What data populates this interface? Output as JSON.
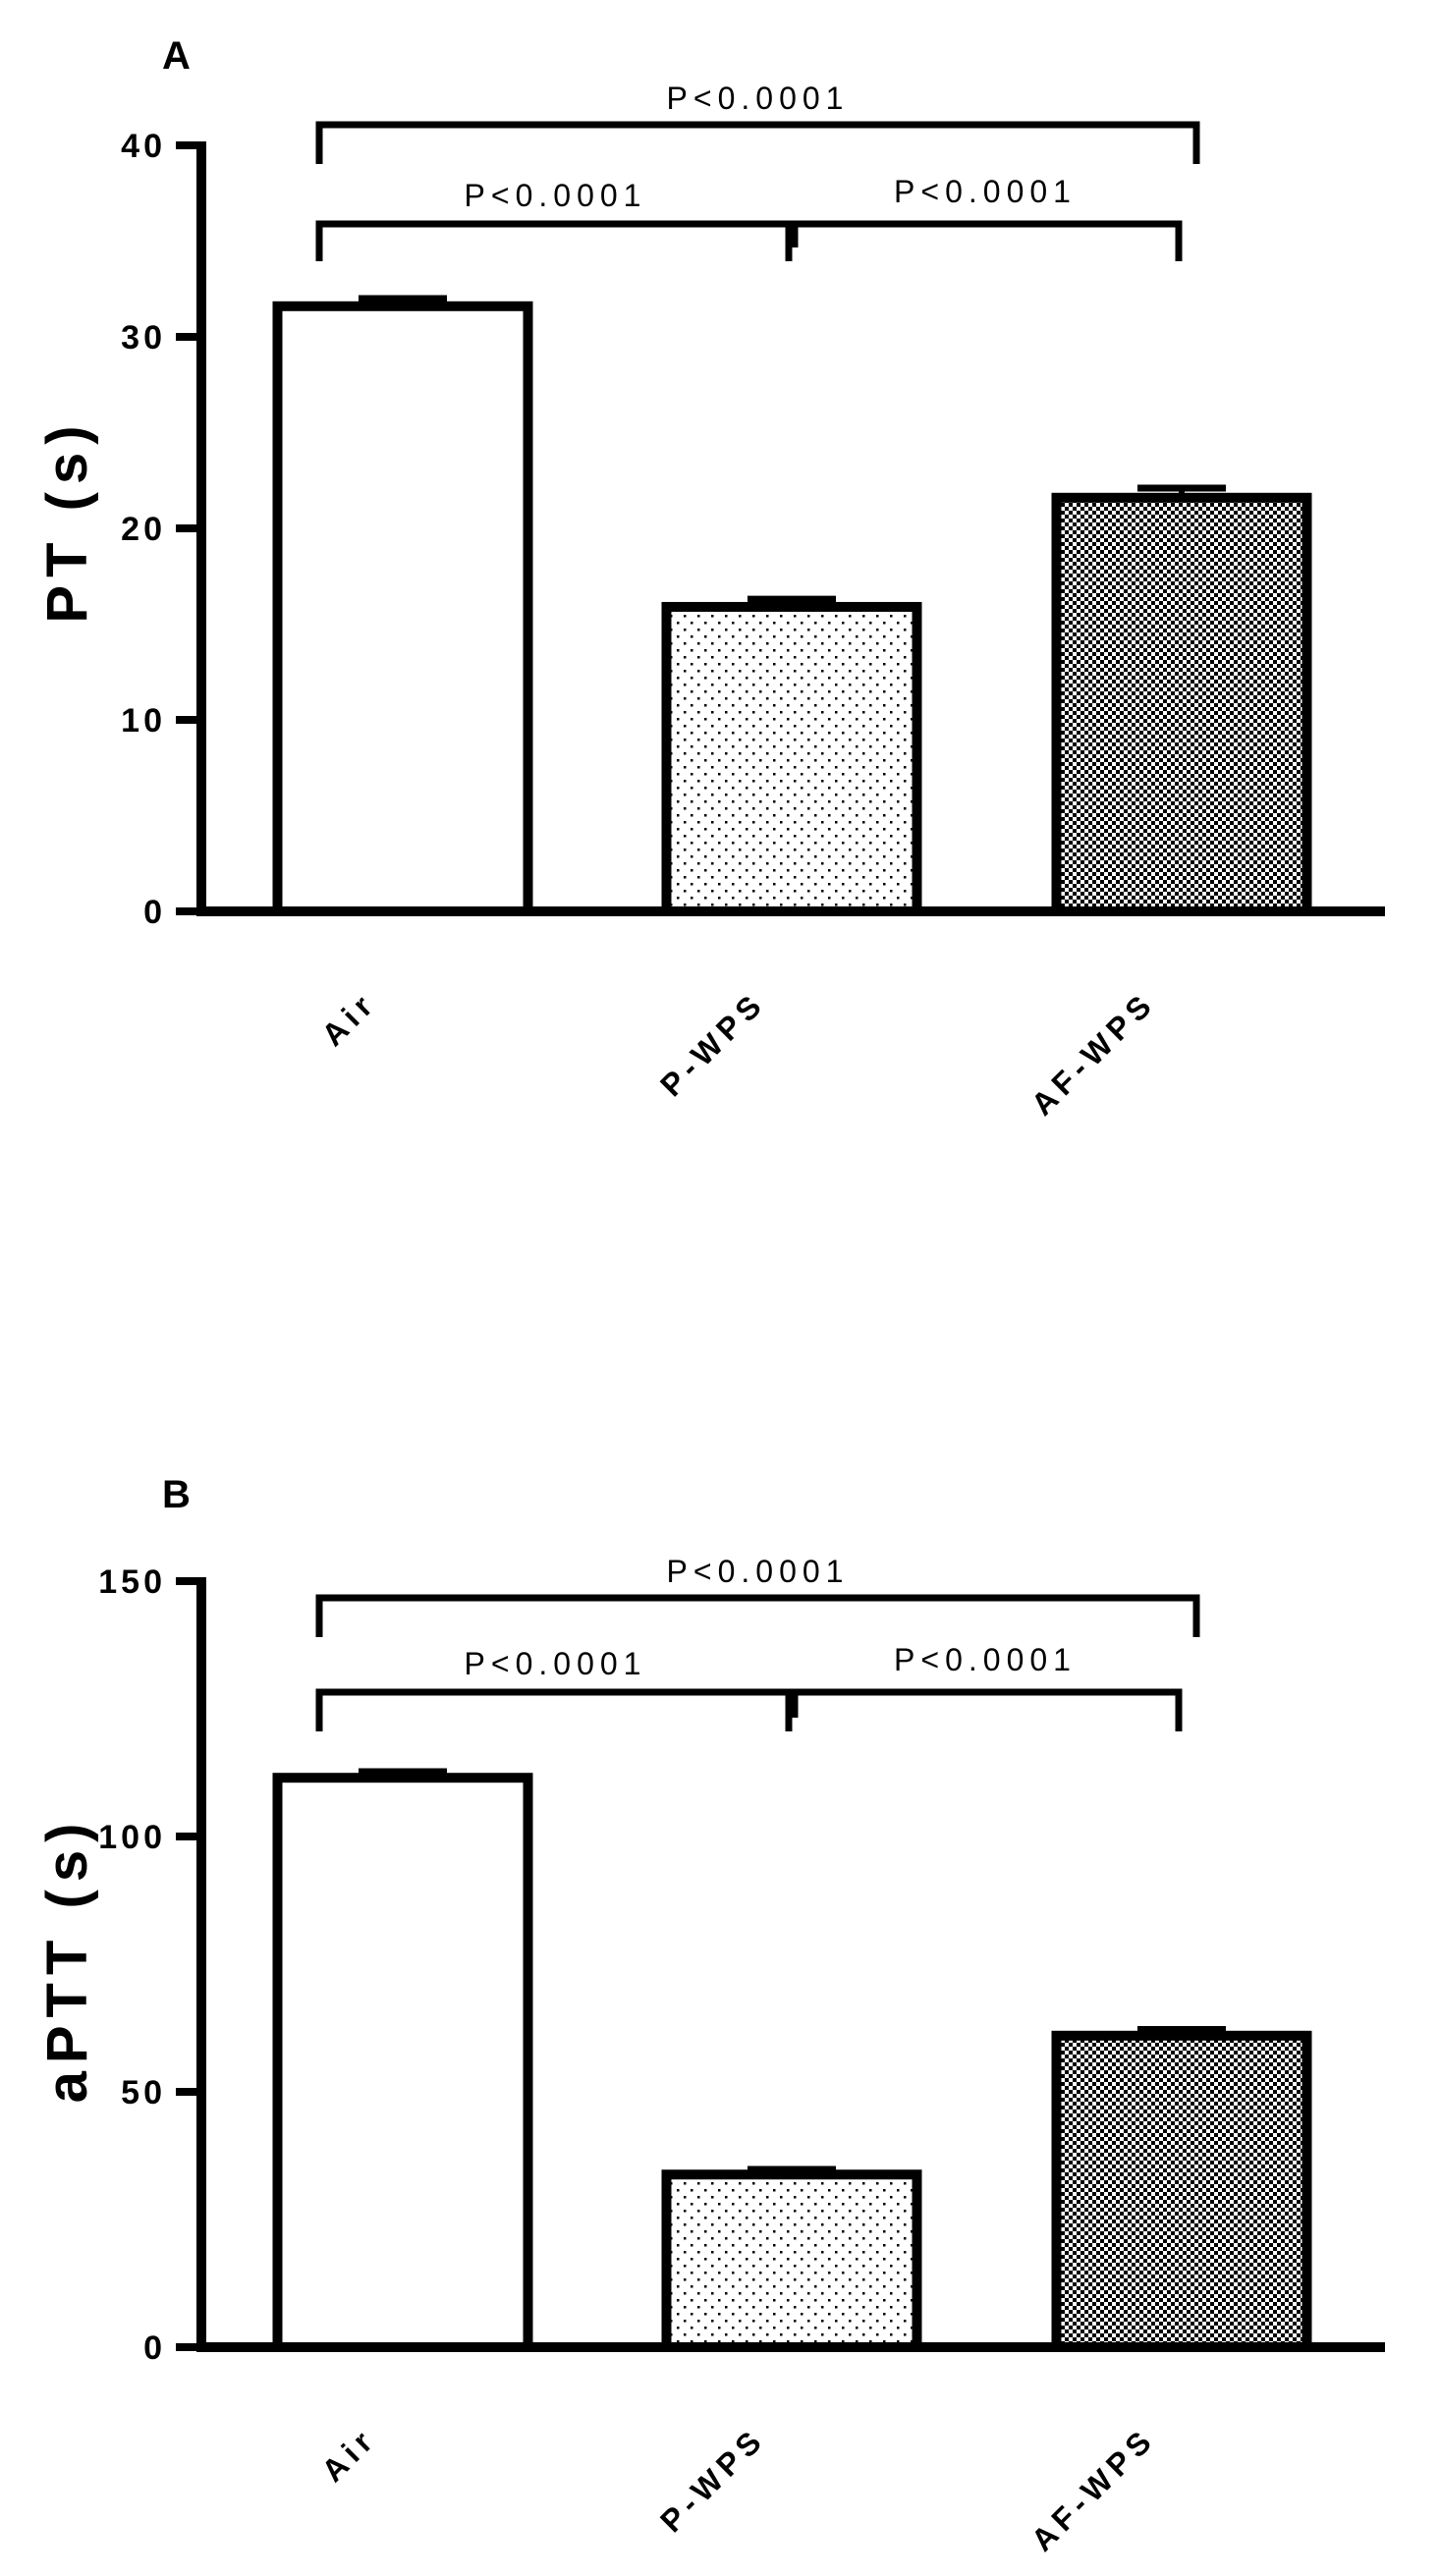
{
  "chart_data": [
    {
      "type": "bar",
      "panel": "A",
      "ylabel": "PT (s)",
      "xlabel": "",
      "ylim": [
        0,
        40
      ],
      "yticks": [
        0,
        10,
        20,
        30,
        40
      ],
      "categories": [
        "Air",
        "P-WPS",
        "AF-WPS"
      ],
      "values": [
        31.6,
        15.9,
        21.6
      ],
      "errors": [
        0.4,
        0.4,
        0.5
      ],
      "fill": [
        "white",
        "sparse-dots",
        "dense-crosshatch"
      ],
      "comparisons": [
        {
          "from": "Air",
          "to": "AF-WPS",
          "label": "P<0.0001"
        },
        {
          "from": "Air",
          "to": "P-WPS",
          "label": "P<0.0001"
        },
        {
          "from": "P-WPS",
          "to": "AF-WPS",
          "label": "P<0.0001"
        }
      ]
    },
    {
      "type": "bar",
      "panel": "B",
      "ylabel": "aPTT (s)",
      "xlabel": "",
      "ylim": [
        0,
        150
      ],
      "yticks": [
        0,
        50,
        100,
        150
      ],
      "categories": [
        "Air",
        "P-WPS",
        "AF-WPS"
      ],
      "values": [
        111.5,
        33.8,
        61.0
      ],
      "errors": [
        1.2,
        1.0,
        1.2
      ],
      "fill": [
        "white",
        "sparse-dots",
        "dense-crosshatch"
      ],
      "comparisons": [
        {
          "from": "Air",
          "to": "AF-WPS",
          "label": "P<0.0001"
        },
        {
          "from": "Air",
          "to": "P-WPS",
          "label": "P<0.0001"
        },
        {
          "from": "P-WPS",
          "to": "AF-WPS",
          "label": "P<0.0001"
        }
      ]
    }
  ],
  "colors": {
    "ink": "#000000",
    "background": "#ffffff"
  }
}
